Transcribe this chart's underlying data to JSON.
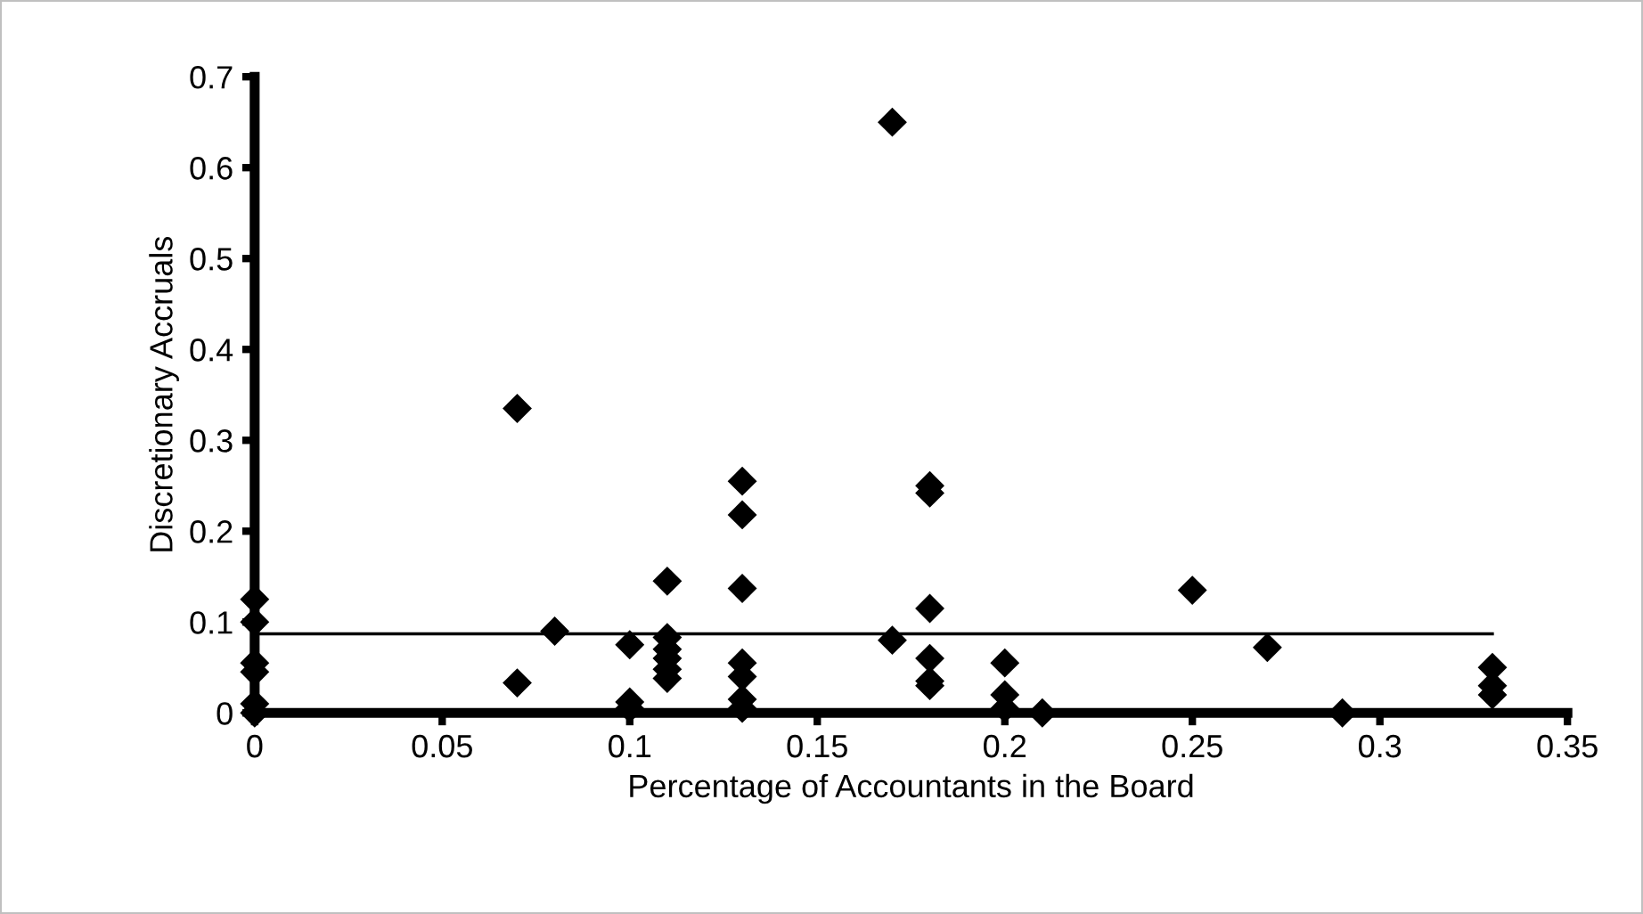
{
  "chart_data": {
    "type": "scatter",
    "xlabel": "Percentage of Accountants in the Board",
    "ylabel": "Discretionary Accruals",
    "xlim": [
      0,
      0.35
    ],
    "ylim": [
      0,
      0.7
    ],
    "xticks": [
      0,
      0.05,
      0.1,
      0.15,
      0.2,
      0.25,
      0.3,
      0.35
    ],
    "yticks": [
      0,
      0.1,
      0.2,
      0.3,
      0.4,
      0.5,
      0.6,
      0.7
    ],
    "grid": false,
    "legend": false,
    "marker": "diamond",
    "series": [
      {
        "color": "#000000",
        "x": [
          0,
          0,
          0,
          0,
          0,
          0,
          0.07,
          0.07,
          0.08,
          0.1,
          0.1,
          0.1,
          0.11,
          0.11,
          0.11,
          0.11,
          0.11,
          0.11,
          0.13,
          0.13,
          0.13,
          0.13,
          0.13,
          0.13,
          0.13,
          0.17,
          0.17,
          0.18,
          0.18,
          0.18,
          0.18,
          0.18,
          0.18,
          0.2,
          0.2,
          0.2,
          0.21,
          0.25,
          0.27,
          0.29,
          0.33,
          0.33,
          0.33
        ],
        "values": [
          0.125,
          0.1,
          0.055,
          0.045,
          0.01,
          0.0,
          0.335,
          0.033,
          0.09,
          0.075,
          0.012,
          0.005,
          0.145,
          0.083,
          0.07,
          0.06,
          0.048,
          0.038,
          0.255,
          0.218,
          0.137,
          0.055,
          0.04,
          0.015,
          0.005,
          0.65,
          0.08,
          0.25,
          0.242,
          0.115,
          0.06,
          0.035,
          0.03,
          0.055,
          0.02,
          0.005,
          0.0,
          0.135,
          0.072,
          0.0,
          0.05,
          0.03,
          0.02
        ]
      },
      {
        "type": "line",
        "color": "#000000",
        "marker": "none",
        "line_style": "solid",
        "x": [
          0,
          0.33
        ],
        "values": [
          0.087,
          0.087
        ]
      }
    ]
  }
}
